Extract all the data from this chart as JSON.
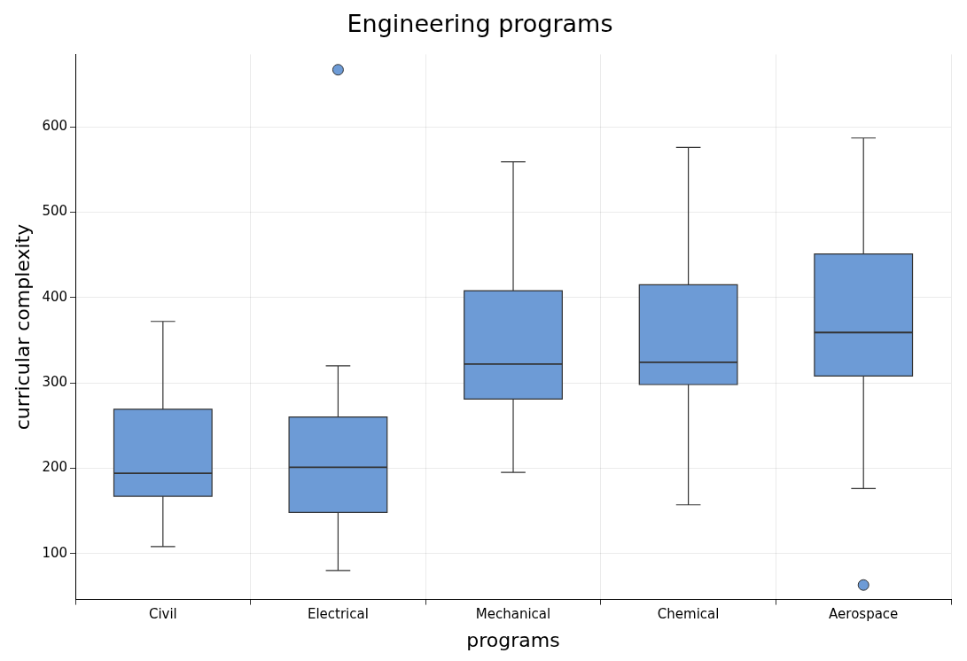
{
  "chart_data": {
    "type": "box",
    "title": "Engineering programs",
    "xlabel": "programs",
    "ylabel": "curricular complexity",
    "categories": [
      "Civil",
      "Electrical",
      "Mechanical",
      "Chemical",
      "Aerospace"
    ],
    "color": "#6d9bd6",
    "boxes": [
      {
        "low": 108,
        "q1": 167,
        "median": 194,
        "q3": 269,
        "high": 372
      },
      {
        "low": 80,
        "q1": 148,
        "median": 201,
        "q3": 260,
        "high": 320,
        "outliers": [
          667
        ]
      },
      {
        "low": 195,
        "q1": 281,
        "median": 322,
        "q3": 408,
        "high": 559
      },
      {
        "low": 157,
        "q1": 298,
        "median": 324,
        "q3": 415,
        "high": 576
      },
      {
        "low": 176,
        "q1": 308,
        "median": 359,
        "q3": 451,
        "high": 587,
        "outliers": [
          63
        ]
      }
    ],
    "ylim": [
      46,
      685
    ],
    "yticks": [
      100,
      200,
      300,
      400,
      500,
      600
    ],
    "grid": true
  }
}
